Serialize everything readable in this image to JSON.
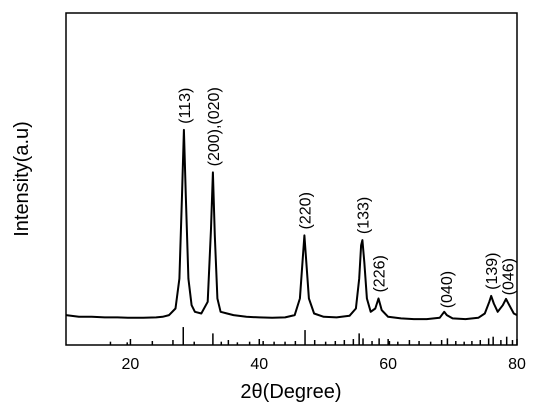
{
  "chart_data": {
    "type": "line",
    "xlabel": "2θ(Degree)",
    "ylabel": "Intensity(a.u)",
    "xlim": [
      10,
      80
    ],
    "xticks": [
      20,
      40,
      60,
      80
    ],
    "ylim": [
      0,
      100
    ],
    "color": "#000000",
    "x": [
      10,
      12,
      14,
      16,
      18,
      20,
      22,
      24,
      25,
      26,
      27,
      27.6,
      28,
      28.3,
      28.6,
      29,
      29.5,
      30,
      31,
      32,
      32.5,
      32.8,
      33.1,
      33.5,
      34,
      35,
      36,
      38,
      40,
      42,
      44,
      45.5,
      46.3,
      46.7,
      47,
      47.3,
      47.7,
      48.5,
      50,
      52,
      54,
      55,
      55.5,
      55.8,
      56,
      56.3,
      56.7,
      57.3,
      58,
      58.5,
      59,
      60,
      62,
      64,
      66,
      68,
      68.7,
      69.1,
      70,
      72,
      74,
      75,
      75.7,
      76,
      76.4,
      77,
      77.8,
      78.3,
      78.8,
      79.5,
      80
    ],
    "values": [
      9,
      8.5,
      8.5,
      8.3,
      8.3,
      8.2,
      8.2,
      8.3,
      8.5,
      9,
      11,
      20,
      45,
      64.8,
      45,
      20,
      12,
      10,
      9.5,
      13,
      35,
      52,
      33,
      14,
      10,
      9.5,
      9,
      8.5,
      8.3,
      8.2,
      8.3,
      9,
      14,
      25,
      33,
      25,
      14,
      9.5,
      8.5,
      8.3,
      8.8,
      11,
      20,
      30,
      31.6,
      25,
      14,
      10,
      11,
      14,
      10.5,
      8.5,
      8,
      7.8,
      7.8,
      8.2,
      10,
      9,
      8,
      7.8,
      8.2,
      9.5,
      13,
      14.8,
      12.5,
      10,
      12,
      13.9,
      12,
      9.5,
      9
    ],
    "reference": {
      "x": [
        16.9,
        19.5,
        23.4,
        26.6,
        28.2,
        29.9,
        32.8,
        34.1,
        35.2,
        36.6,
        38.5,
        40.6,
        42.3,
        44.0,
        45.6,
        47.1,
        48.6,
        50.3,
        51.8,
        53.2,
        54.6,
        55.5,
        56.1,
        57.5,
        58.6,
        60.2,
        61.5,
        63.3,
        64.8,
        66.6,
        68.3,
        69.2,
        70.5,
        71.8,
        73.0,
        74.3,
        75.6,
        76.3,
        77.5,
        78.4,
        79.3
      ],
      "values": [
        1,
        0.8,
        1.2,
        1.5,
        5.4,
        1,
        3.5,
        1,
        1.5,
        0.8,
        1,
        1.2,
        1,
        1,
        1.2,
        4.5,
        1.5,
        1,
        1.2,
        1.5,
        1.8,
        3.5,
        2,
        1.2,
        2,
        1.2,
        1,
        1.5,
        1.2,
        1,
        1.5,
        2,
        1.2,
        1,
        1.2,
        1.5,
        2,
        2.5,
        1.5,
        2.5,
        1.5
      ]
    },
    "annotations": [
      {
        "text": "(113)",
        "x": 28.3
      },
      {
        "text": "(200),(020)",
        "x": 32.8
      },
      {
        "text": "(220)",
        "x": 47
      },
      {
        "text": "(133)",
        "x": 56
      },
      {
        "text": "(226)",
        "x": 58.5
      },
      {
        "text": "(040)",
        "x": 69
      },
      {
        "text": "(139)",
        "x": 76
      },
      {
        "text": "(046)",
        "x": 78.5
      }
    ]
  }
}
